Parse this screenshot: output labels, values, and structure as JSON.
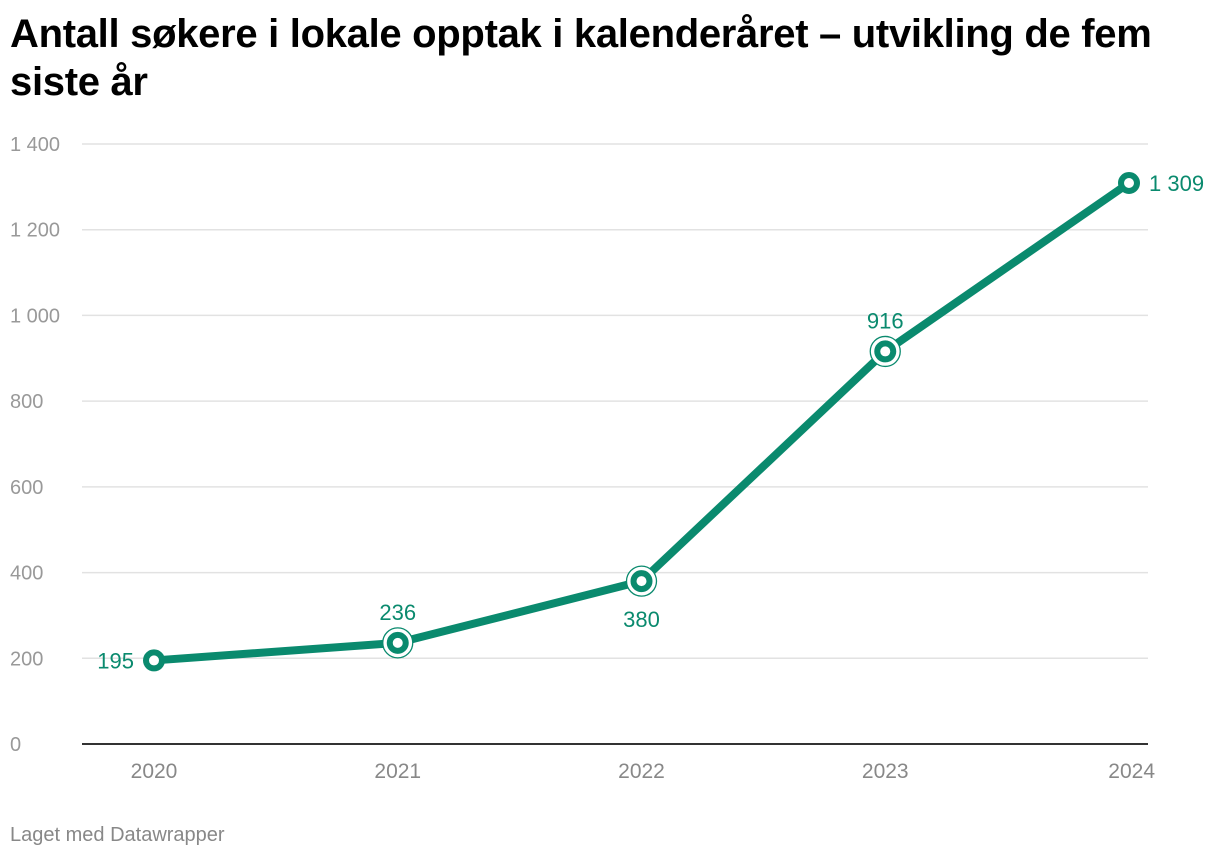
{
  "title": "Antall søkere i lokale opptak i kalenderåret – utvikling de fem siste år",
  "footer": "Laget med Datawrapper",
  "colors": {
    "line": "#0a8a6e",
    "grid": "#e2e2e2",
    "axis": "#333333",
    "tick_text": "#999999",
    "label": "#0a8a6e"
  },
  "chart_data": {
    "type": "line",
    "title": "Antall søkere i lokale opptak i kalenderåret – utvikling de fem siste år",
    "xlabel": "",
    "ylabel": "",
    "x": [
      "2020",
      "2021",
      "2022",
      "2023",
      "2024"
    ],
    "series": [
      {
        "values": [
          195,
          236,
          380,
          916,
          1309
        ],
        "labels": [
          "195",
          "236",
          "380",
          "916",
          "1 309"
        ],
        "label_positions": [
          "left",
          "above",
          "below",
          "above",
          "right"
        ]
      }
    ],
    "ylim": [
      0,
      1400
    ],
    "yticks": [
      0,
      200,
      400,
      600,
      800,
      1000,
      1200,
      1400
    ],
    "ytick_labels": [
      "0",
      "200",
      "400",
      "600",
      "800",
      "1 000",
      "1 200",
      "1 400"
    ],
    "grid": true,
    "legend": "none"
  }
}
